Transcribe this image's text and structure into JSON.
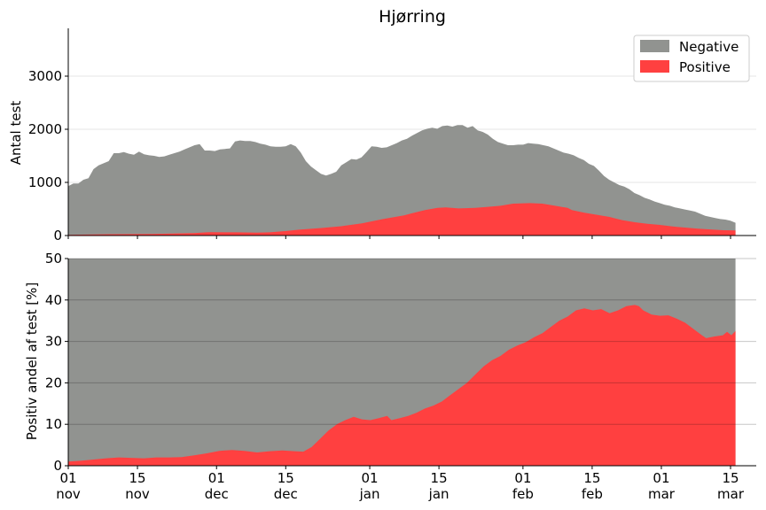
{
  "title": "Hjørring",
  "colors": {
    "negative": "#919390",
    "positive": "#ff4040"
  },
  "chart_data": [
    {
      "type": "area",
      "panel": "top",
      "title": "Hjørring",
      "ylabel": "Antal test",
      "xlabel": "",
      "ylim": [
        0,
        3900
      ],
      "yticks": [
        0,
        1000,
        2000,
        3000
      ],
      "grid": true,
      "legend": {
        "position": "top-right",
        "entries": [
          "Negative",
          "Positive"
        ]
      },
      "x_start": "2021-11-01",
      "x_end": "2022-03-16",
      "total": [
        [
          0,
          930
        ],
        [
          1,
          980
        ],
        [
          2,
          980
        ],
        [
          3,
          1050
        ],
        [
          4,
          1080
        ],
        [
          5,
          1250
        ],
        [
          6,
          1320
        ],
        [
          7,
          1360
        ],
        [
          8,
          1400
        ],
        [
          9,
          1550
        ],
        [
          10,
          1550
        ],
        [
          11,
          1570
        ],
        [
          12,
          1540
        ],
        [
          13,
          1520
        ],
        [
          14,
          1580
        ],
        [
          15,
          1530
        ],
        [
          16,
          1510
        ],
        [
          17,
          1500
        ],
        [
          18,
          1480
        ],
        [
          19,
          1490
        ],
        [
          20,
          1520
        ],
        [
          21,
          1550
        ],
        [
          22,
          1580
        ],
        [
          23,
          1620
        ],
        [
          24,
          1660
        ],
        [
          25,
          1700
        ],
        [
          26,
          1720
        ],
        [
          27,
          1600
        ],
        [
          28,
          1600
        ],
        [
          29,
          1590
        ],
        [
          30,
          1620
        ],
        [
          31,
          1630
        ],
        [
          32,
          1640
        ],
        [
          33,
          1770
        ],
        [
          34,
          1790
        ],
        [
          35,
          1780
        ],
        [
          36,
          1780
        ],
        [
          37,
          1760
        ],
        [
          38,
          1730
        ],
        [
          39,
          1710
        ],
        [
          40,
          1680
        ],
        [
          41,
          1670
        ],
        [
          42,
          1670
        ],
        [
          43,
          1680
        ],
        [
          44,
          1720
        ],
        [
          45,
          1680
        ],
        [
          46,
          1560
        ],
        [
          47,
          1400
        ],
        [
          48,
          1300
        ],
        [
          49,
          1230
        ],
        [
          50,
          1160
        ],
        [
          51,
          1130
        ],
        [
          52,
          1160
        ],
        [
          53,
          1200
        ],
        [
          54,
          1320
        ],
        [
          55,
          1380
        ],
        [
          56,
          1440
        ],
        [
          57,
          1430
        ],
        [
          58,
          1470
        ],
        [
          59,
          1570
        ],
        [
          60,
          1680
        ],
        [
          61,
          1670
        ],
        [
          62,
          1650
        ],
        [
          63,
          1660
        ],
        [
          64,
          1700
        ],
        [
          65,
          1740
        ],
        [
          66,
          1790
        ],
        [
          67,
          1820
        ],
        [
          68,
          1880
        ],
        [
          69,
          1930
        ],
        [
          70,
          1980
        ],
        [
          71,
          2010
        ],
        [
          72,
          2030
        ],
        [
          73,
          2010
        ],
        [
          74,
          2060
        ],
        [
          75,
          2070
        ],
        [
          76,
          2050
        ],
        [
          77,
          2080
        ],
        [
          78,
          2080
        ],
        [
          79,
          2030
        ],
        [
          80,
          2060
        ],
        [
          81,
          1980
        ],
        [
          82,
          1950
        ],
        [
          83,
          1900
        ],
        [
          84,
          1820
        ],
        [
          85,
          1760
        ],
        [
          86,
          1730
        ],
        [
          87,
          1700
        ],
        [
          88,
          1700
        ],
        [
          89,
          1710
        ],
        [
          90,
          1710
        ],
        [
          91,
          1740
        ],
        [
          92,
          1730
        ],
        [
          93,
          1720
        ],
        [
          94,
          1700
        ],
        [
          95,
          1680
        ],
        [
          96,
          1640
        ],
        [
          97,
          1600
        ],
        [
          98,
          1560
        ],
        [
          99,
          1540
        ],
        [
          100,
          1510
        ],
        [
          101,
          1460
        ],
        [
          102,
          1420
        ],
        [
          103,
          1350
        ],
        [
          104,
          1310
        ],
        [
          105,
          1220
        ],
        [
          106,
          1120
        ],
        [
          107,
          1050
        ],
        [
          108,
          1000
        ],
        [
          109,
          950
        ],
        [
          110,
          920
        ],
        [
          111,
          870
        ],
        [
          112,
          800
        ],
        [
          113,
          760
        ],
        [
          114,
          710
        ],
        [
          115,
          680
        ],
        [
          116,
          640
        ],
        [
          117,
          610
        ],
        [
          118,
          580
        ],
        [
          119,
          560
        ],
        [
          120,
          530
        ],
        [
          121,
          510
        ],
        [
          122,
          490
        ],
        [
          123,
          470
        ],
        [
          124,
          450
        ],
        [
          125,
          410
        ],
        [
          126,
          370
        ],
        [
          127,
          350
        ],
        [
          128,
          330
        ],
        [
          129,
          310
        ],
        [
          130,
          300
        ],
        [
          131,
          280
        ],
        [
          132,
          240
        ]
      ],
      "positive": [
        [
          0,
          12
        ],
        [
          3,
          16
        ],
        [
          10,
          25
        ],
        [
          20,
          30
        ],
        [
          30,
          45
        ],
        [
          33,
          60
        ],
        [
          34,
          62
        ],
        [
          40,
          60
        ],
        [
          45,
          55
        ],
        [
          48,
          60
        ],
        [
          52,
          85
        ],
        [
          55,
          110
        ],
        [
          60,
          140
        ],
        [
          65,
          175
        ],
        [
          70,
          230
        ],
        [
          75,
          310
        ],
        [
          80,
          380
        ],
        [
          82,
          420
        ],
        [
          85,
          480
        ],
        [
          88,
          520
        ],
        [
          90,
          530
        ],
        [
          93,
          510
        ],
        [
          97,
          520
        ],
        [
          100,
          540
        ],
        [
          103,
          560
        ],
        [
          106,
          600
        ],
        [
          110,
          610
        ],
        [
          113,
          600
        ],
        [
          116,
          560
        ],
        [
          119,
          520
        ],
        [
          120,
          480
        ],
        [
          123,
          430
        ],
        [
          126,
          390
        ],
        [
          129,
          350
        ],
        [
          130,
          330
        ],
        [
          132,
          290
        ],
        [
          135,
          250
        ],
        [
          138,
          220
        ],
        [
          141,
          200
        ],
        [
          144,
          170
        ],
        [
          147,
          150
        ],
        [
          150,
          130
        ],
        [
          153,
          115
        ],
        [
          156,
          100
        ],
        [
          159,
          95
        ]
      ]
    },
    {
      "type": "area",
      "panel": "bottom",
      "ylabel": "Positiv andel af test [%]",
      "xlabel": "",
      "ylim": [
        0,
        50
      ],
      "yticks": [
        0,
        10,
        20,
        30,
        40,
        50
      ],
      "grid": true,
      "x_start": "2021-11-01",
      "x_end": "2022-03-16",
      "percent": [
        [
          0,
          1.0
        ],
        [
          3,
          1.2
        ],
        [
          6,
          1.5
        ],
        [
          9,
          1.8
        ],
        [
          12,
          2.0
        ],
        [
          15,
          1.9
        ],
        [
          18,
          1.8
        ],
        [
          21,
          2.0
        ],
        [
          24,
          2.0
        ],
        [
          27,
          2.1
        ],
        [
          30,
          2.5
        ],
        [
          33,
          3.0
        ],
        [
          36,
          3.6
        ],
        [
          39,
          3.8
        ],
        [
          42,
          3.6
        ],
        [
          45,
          3.2
        ],
        [
          48,
          3.5
        ],
        [
          51,
          3.7
        ],
        [
          54,
          3.5
        ],
        [
          56,
          3.4
        ],
        [
          58,
          4.5
        ],
        [
          60,
          6.5
        ],
        [
          62,
          8.5
        ],
        [
          64,
          10.0
        ],
        [
          66,
          11.0
        ],
        [
          68,
          11.8
        ],
        [
          70,
          11.2
        ],
        [
          72,
          11.0
        ],
        [
          74,
          11.5
        ],
        [
          76,
          12.0
        ],
        [
          77,
          11.0
        ],
        [
          79,
          11.5
        ],
        [
          81,
          12.0
        ],
        [
          83,
          12.8
        ],
        [
          85,
          13.8
        ],
        [
          87,
          14.5
        ],
        [
          89,
          15.5
        ],
        [
          91,
          17.0
        ],
        [
          93,
          18.5
        ],
        [
          95,
          20.0
        ],
        [
          97,
          22.0
        ],
        [
          99,
          24.0
        ],
        [
          101,
          25.5
        ],
        [
          103,
          26.5
        ],
        [
          105,
          28.0
        ],
        [
          107,
          29.0
        ],
        [
          109,
          29.8
        ],
        [
          111,
          31.0
        ],
        [
          113,
          32.0
        ],
        [
          115,
          33.5
        ],
        [
          117,
          35.0
        ],
        [
          119,
          36.0
        ],
        [
          121,
          37.5
        ],
        [
          123,
          38.0
        ],
        [
          125,
          37.5
        ],
        [
          127,
          37.8
        ],
        [
          129,
          36.8
        ],
        [
          131,
          37.5
        ],
        [
          133,
          38.5
        ],
        [
          135,
          38.8
        ],
        [
          136,
          38.5
        ],
        [
          137,
          37.5
        ],
        [
          139,
          36.5
        ],
        [
          141,
          36.2
        ],
        [
          143,
          36.3
        ],
        [
          145,
          35.5
        ],
        [
          147,
          34.5
        ],
        [
          149,
          33.0
        ],
        [
          151,
          31.5
        ],
        [
          152,
          30.8
        ],
        [
          154,
          31.2
        ],
        [
          156,
          31.5
        ],
        [
          157,
          32.3
        ],
        [
          158,
          31.5
        ],
        [
          159,
          32.5
        ]
      ]
    }
  ],
  "x_ticks": [
    {
      "day": 0,
      "line1": "01",
      "line2": "nov"
    },
    {
      "day": 14,
      "line1": "15",
      "line2": "nov"
    },
    {
      "day": 30,
      "line1": "01",
      "line2": "dec"
    },
    {
      "day": 44,
      "line1": "15",
      "line2": "dec"
    },
    {
      "day": 61,
      "line1": "01",
      "line2": "jan"
    },
    {
      "day": 75,
      "line1": "15",
      "line2": "jan"
    },
    {
      "day": 92,
      "line1": "01",
      "line2": "feb"
    },
    {
      "day": 106,
      "line1": "15",
      "line2": "feb"
    },
    {
      "day": 120,
      "line1": "01",
      "line2": "mar"
    },
    {
      "day": 134,
      "line1": "15",
      "line2": "mar"
    }
  ]
}
